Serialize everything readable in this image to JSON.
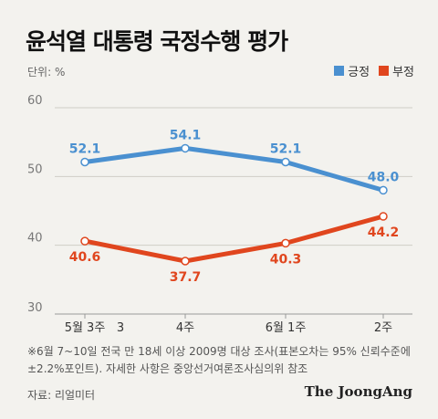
{
  "title": "윤석열 대통령 국정수행 평가",
  "unit_label": "단위: %",
  "legend": {
    "positive": {
      "label": "긍정",
      "color": "#4a90d0"
    },
    "negative": {
      "label": "부정",
      "color": "#e0461e"
    }
  },
  "note": "※6월 7~10일 전국 만 18세 이상 2009명 대상 조사(표본오차는 95% 신뢰수준에 ±2.2%포인트). 자세한 사항은 중앙선거여론조사심의위 참조",
  "source": "자료: 리얼미터",
  "brand": "The JoongAng",
  "chart_data": {
    "type": "line",
    "title": "윤석열 대통령 국정수행 평가",
    "categories": [
      "5월 3주",
      "4주",
      "6월 1주",
      "2주"
    ],
    "extra_tick": "3",
    "ylabel": "단위: %",
    "ylim": [
      30,
      60
    ],
    "yticks": [
      30,
      40,
      50,
      60
    ],
    "grid": true,
    "legend_position": "top-right",
    "series": [
      {
        "name": "긍정",
        "color": "#4a90d0",
        "values": [
          52.1,
          54.1,
          52.1,
          48.0
        ],
        "labels": [
          "52.1",
          "54.1",
          "52.1",
          "48.0"
        ]
      },
      {
        "name": "부정",
        "color": "#e0461e",
        "values": [
          40.6,
          37.7,
          40.3,
          44.2
        ],
        "labels": [
          "40.6",
          "37.7",
          "40.3",
          "44.2"
        ]
      }
    ]
  }
}
